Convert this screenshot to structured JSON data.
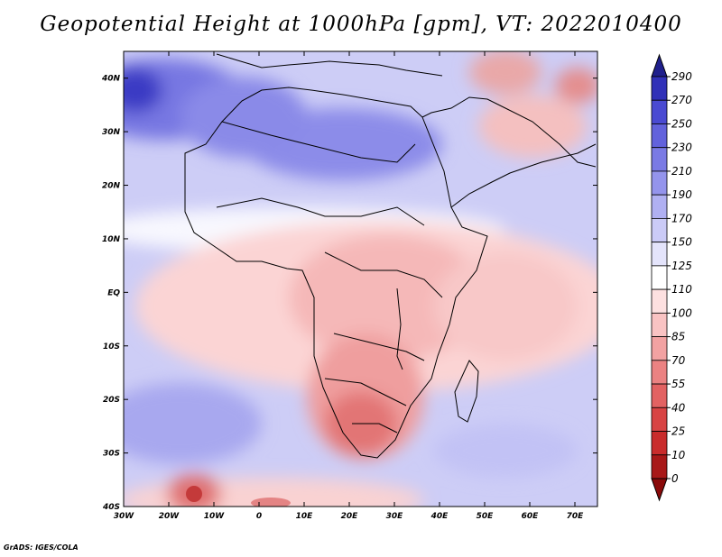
{
  "title": "Geopotential Height at 1000hPa [gpm], VT: 2022010400",
  "credit": "GrADS: IGES/COLA",
  "map": {
    "lon_range": [
      -30,
      75
    ],
    "lat_range": [
      -40,
      45
    ],
    "lon_ticks": [
      {
        "value": -30,
        "label": "30W"
      },
      {
        "value": -20,
        "label": "20W"
      },
      {
        "value": -10,
        "label": "10W"
      },
      {
        "value": 0,
        "label": "0"
      },
      {
        "value": 10,
        "label": "10E"
      },
      {
        "value": 20,
        "label": "20E"
      },
      {
        "value": 30,
        "label": "30E"
      },
      {
        "value": 40,
        "label": "40E"
      },
      {
        "value": 50,
        "label": "50E"
      },
      {
        "value": 60,
        "label": "60E"
      },
      {
        "value": 70,
        "label": "70E"
      }
    ],
    "lat_ticks": [
      {
        "value": 40,
        "label": "40N"
      },
      {
        "value": 30,
        "label": "30N"
      },
      {
        "value": 20,
        "label": "20N"
      },
      {
        "value": 10,
        "label": "10N"
      },
      {
        "value": 0,
        "label": "EQ"
      },
      {
        "value": -10,
        "label": "10S"
      },
      {
        "value": -20,
        "label": "20S"
      },
      {
        "value": -30,
        "label": "30S"
      },
      {
        "value": -40,
        "label": "40S"
      }
    ]
  },
  "colorbar": {
    "labels": [
      "290",
      "270",
      "250",
      "230",
      "210",
      "190",
      "170",
      "150",
      "125",
      "110",
      "100",
      "85",
      "70",
      "55",
      "40",
      "25",
      "10",
      "0"
    ],
    "colors": [
      "#1f1f8c",
      "#3030b8",
      "#4a4ad2",
      "#6262dc",
      "#7a7ae4",
      "#9494ec",
      "#b0b0f2",
      "#cbcbf7",
      "#e4e4fb",
      "#ffffff",
      "#fde0e0",
      "#f9c3c3",
      "#f2a2a2",
      "#eb8282",
      "#e26262",
      "#d84444",
      "#c92c2c",
      "#a81818",
      "#8a0a0a"
    ]
  }
}
